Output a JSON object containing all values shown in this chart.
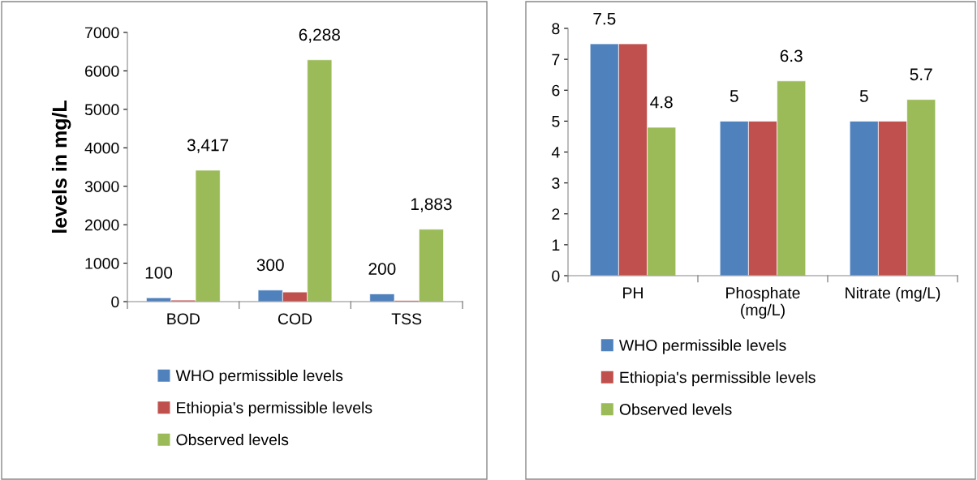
{
  "chart_data": [
    {
      "type": "bar",
      "ylabel": "levels in mg/L",
      "categories": [
        "BOD",
        "COD",
        "TSS"
      ],
      "ylim": [
        0,
        7000
      ],
      "yticks": [
        0,
        1000,
        2000,
        3000,
        4000,
        5000,
        6000,
        7000
      ],
      "grid": false,
      "legend": "bottom",
      "series": [
        {
          "name": "WHO permissible levels",
          "color": "#4f81bd",
          "values": [
            100,
            300,
            200
          ],
          "value_labels": [
            "100",
            "300",
            "200"
          ]
        },
        {
          "name": "Ethiopia's permissible levels",
          "color": "#c0504d",
          "values": [
            40,
            250,
            30
          ],
          "value_labels": [
            null,
            null,
            null
          ]
        },
        {
          "name": "Observed levels",
          "color": "#9bbb59",
          "values": [
            3417,
            6288,
            1883
          ],
          "value_labels": [
            "3,417",
            "6,288",
            "1,883"
          ]
        }
      ]
    },
    {
      "type": "bar",
      "categories": [
        "PH",
        "Phosphate\n(mg/L)",
        "Nitrate (mg/L)"
      ],
      "ylim": [
        0,
        8
      ],
      "yticks": [
        0,
        1,
        2,
        3,
        4,
        5,
        6,
        7,
        8
      ],
      "grid": false,
      "legend": "bottom",
      "series": [
        {
          "name": "WHO permissible levels",
          "color": "#4f81bd",
          "values": [
            7.5,
            5,
            5
          ],
          "value_labels": [
            "7.5",
            "5",
            "5"
          ]
        },
        {
          "name": "Ethiopia's permissible levels",
          "color": "#c0504d",
          "values": [
            7.5,
            5,
            5
          ],
          "value_labels": [
            null,
            null,
            null
          ]
        },
        {
          "name": "Observed levels",
          "color": "#9bbb59",
          "values": [
            4.8,
            6.3,
            5.7
          ],
          "value_labels": [
            "4.8",
            "6.3",
            "5.7"
          ]
        }
      ]
    }
  ]
}
